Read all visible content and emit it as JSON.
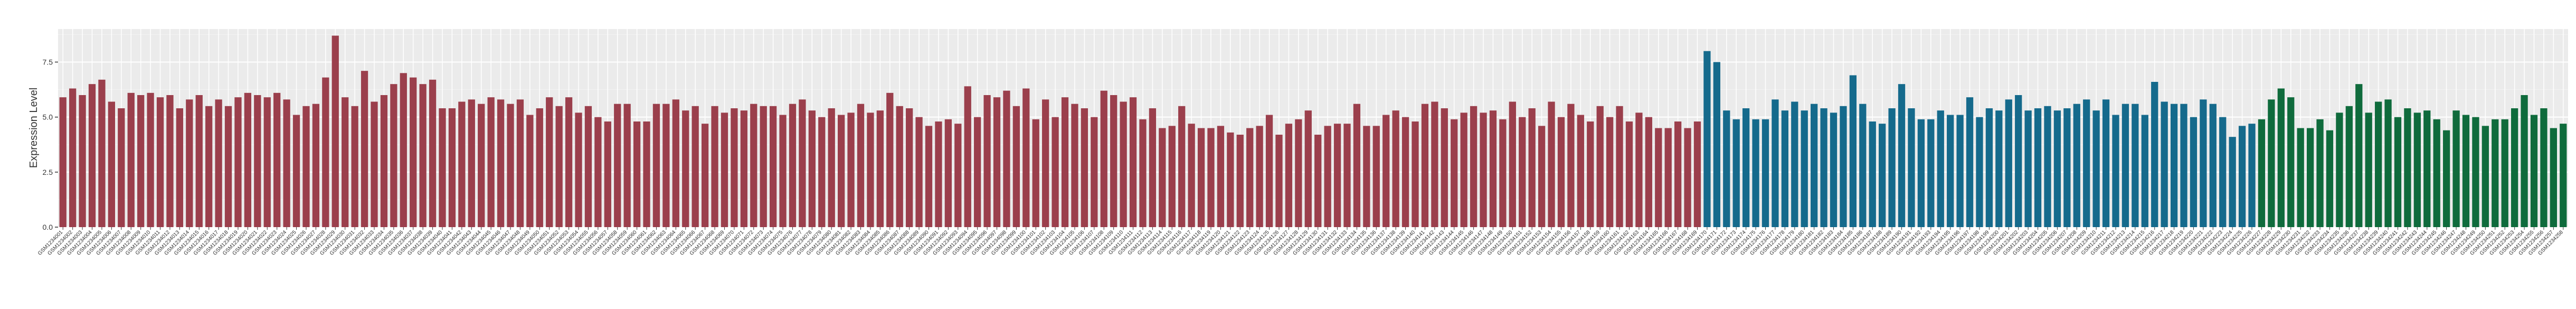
{
  "chart_data": {
    "type": "bar",
    "title": "",
    "xlabel": "",
    "ylabel": "Expression Level",
    "ylim": [
      0,
      9
    ],
    "yticks": [
      0.0,
      2.5,
      5.0,
      7.5
    ],
    "ytick_labels": [
      "0.0",
      "2.5",
      "5.0",
      "7.5"
    ],
    "grid": true,
    "legend": "none",
    "colors": {
      "group1": "#9b3f4c",
      "group2": "#156a8c",
      "group3": "#0f6b3c",
      "panel": "#ebebeb",
      "grid": "#ffffff"
    },
    "categories": [
      "GSM1234001",
      "GSM1234002",
      "GSM1234003",
      "GSM1234004",
      "GSM1234005",
      "GSM1234006",
      "GSM1234007",
      "GSM1234008",
      "GSM1234009",
      "GSM1234010",
      "GSM1234011",
      "GSM1234012",
      "GSM1234013",
      "GSM1234014",
      "GSM1234015",
      "GSM1234016",
      "GSM1234017",
      "GSM1234018",
      "GSM1234019",
      "GSM1234020",
      "GSM1234021",
      "GSM1234022",
      "GSM1234023",
      "GSM1234024",
      "GSM1234025",
      "GSM1234026",
      "GSM1234027",
      "GSM1234028",
      "GSM1234029",
      "GSM1234030",
      "GSM1234031",
      "GSM1234032",
      "GSM1234033",
      "GSM1234034",
      "GSM1234035",
      "GSM1234036",
      "GSM1234037",
      "GSM1234038",
      "GSM1234039",
      "GSM1234040",
      "GSM1234041",
      "GSM1234042",
      "GSM1234043",
      "GSM1234044",
      "GSM1234045",
      "GSM1234046",
      "GSM1234047",
      "GSM1234048",
      "GSM1234049",
      "GSM1234050",
      "GSM1234051",
      "GSM1234052",
      "GSM1234053",
      "GSM1234054",
      "GSM1234055",
      "GSM1234056",
      "GSM1234057",
      "GSM1234058",
      "GSM1234059",
      "GSM1234060",
      "GSM1234061",
      "GSM1234062",
      "GSM1234063",
      "GSM1234064",
      "GSM1234065",
      "GSM1234066",
      "GSM1234067",
      "GSM1234068",
      "GSM1234069",
      "GSM1234070",
      "GSM1234071",
      "GSM1234072",
      "GSM1234073",
      "GSM1234074",
      "GSM1234075",
      "GSM1234076",
      "GSM1234077",
      "GSM1234078",
      "GSM1234079",
      "GSM1234080",
      "GSM1234081",
      "GSM1234082",
      "GSM1234083",
      "GSM1234084",
      "GSM1234085",
      "GSM1234086",
      "GSM1234087",
      "GSM1234088",
      "GSM1234089",
      "GSM1234090",
      "GSM1234091",
      "GSM1234092",
      "GSM1234093",
      "GSM1234094",
      "GSM1234095",
      "GSM1234096",
      "GSM1234097",
      "GSM1234098",
      "GSM1234099",
      "GSM1234100",
      "GSM1234101",
      "GSM1234102",
      "GSM1234103",
      "GSM1234104",
      "GSM1234105",
      "GSM1234106",
      "GSM1234107",
      "GSM1234108",
      "GSM1234109",
      "GSM1234110",
      "GSM1234111",
      "GSM1234112",
      "GSM1234113",
      "GSM1234114",
      "GSM1234115",
      "GSM1234116",
      "GSM1234117",
      "GSM1234118",
      "GSM1234119",
      "GSM1234120",
      "GSM1234121",
      "GSM1234122",
      "GSM1234123",
      "GSM1234124",
      "GSM1234125",
      "GSM1234126",
      "GSM1234127",
      "GSM1234128",
      "GSM1234129",
      "GSM1234130",
      "GSM1234131",
      "GSM1234132",
      "GSM1234133",
      "GSM1234134",
      "GSM1234135",
      "GSM1234136",
      "GSM1234137",
      "GSM1234138",
      "GSM1234139",
      "GSM1234140",
      "GSM1234141",
      "GSM1234142",
      "GSM1234143",
      "GSM1234144",
      "GSM1234145",
      "GSM1234146",
      "GSM1234147",
      "GSM1234148",
      "GSM1234149",
      "GSM1234150",
      "GSM1234151",
      "GSM1234152",
      "GSM1234153",
      "GSM1234154",
      "GSM1234155",
      "GSM1234156",
      "GSM1234157",
      "GSM1234158",
      "GSM1234159",
      "GSM1234160",
      "GSM1234161",
      "GSM1234162",
      "GSM1234163",
      "GSM1234164",
      "GSM1234165",
      "GSM1234166",
      "GSM1234167",
      "GSM1234168",
      "GSM1234169",
      "GSM1234170",
      "GSM1234171",
      "GSM1234172",
      "GSM1234173",
      "GSM1234174",
      "GSM1234175",
      "GSM1234176",
      "GSM1234177",
      "GSM1234178",
      "GSM1234179",
      "GSM1234180",
      "GSM1234181",
      "GSM1234182",
      "GSM1234183",
      "GSM1234184",
      "GSM1234185",
      "GSM1234186",
      "GSM1234187",
      "GSM1234188",
      "GSM1234189",
      "GSM1234190",
      "GSM1234191",
      "GSM1234192",
      "GSM1234193",
      "GSM1234194",
      "GSM1234195",
      "GSM1234196",
      "GSM1234197",
      "GSM1234198",
      "GSM1234199",
      "GSM1234200",
      "GSM1234201",
      "GSM1234202",
      "GSM1234203",
      "GSM1234204",
      "GSM1234205",
      "GSM1234206",
      "GSM1234207",
      "GSM1234208",
      "GSM1234209",
      "GSM1234210",
      "GSM1234211",
      "GSM1234212",
      "GSM1234213",
      "GSM1234214",
      "GSM1234215",
      "GSM1234216",
      "GSM1234217",
      "GSM1234218",
      "GSM1234219",
      "GSM1234220",
      "GSM1234221",
      "GSM1234222",
      "GSM1234223",
      "GSM1234224",
      "GSM1234225",
      "GSM1234226",
      "GSM1234227",
      "GSM1234228",
      "GSM1234229",
      "GSM1234230",
      "GSM1234231",
      "GSM1234232",
      "GSM1234233",
      "GSM1234234",
      "GSM1234235",
      "GSM1234236",
      "GSM1234237",
      "GSM1234238",
      "GSM1234239",
      "GSM1234240",
      "GSM1234241",
      "GSM1234242",
      "GSM1234243",
      "GSM1234244",
      "GSM1234245",
      "GSM1234246",
      "GSM1234247",
      "GSM1234248",
      "GSM1234249",
      "GSM1234250",
      "GSM1234251",
      "GSM1234252",
      "GSM1234253",
      "GSM1234254",
      "GSM1234255",
      "GSM1234256",
      "GSM1234257",
      "GSM1234258"
    ],
    "values": [
      5.9,
      6.3,
      6.0,
      6.5,
      6.7,
      5.7,
      5.4,
      6.1,
      6.0,
      6.1,
      5.9,
      6.0,
      5.4,
      5.8,
      6.0,
      5.5,
      5.8,
      5.5,
      5.9,
      6.1,
      6.0,
      5.9,
      6.1,
      5.8,
      5.1,
      5.5,
      5.6,
      6.8,
      8.7,
      5.9,
      5.5,
      7.1,
      5.7,
      6.0,
      6.5,
      7.0,
      6.8,
      6.5,
      6.7,
      5.4,
      5.4,
      5.7,
      5.8,
      5.6,
      5.9,
      5.8,
      5.6,
      5.8,
      5.1,
      5.4,
      5.9,
      5.5,
      5.9,
      5.2,
      5.5,
      5.0,
      4.8,
      5.6,
      5.6,
      4.8,
      4.8,
      5.6,
      5.6,
      5.8,
      5.3,
      5.5,
      4.7,
      5.5,
      5.2,
      5.4,
      5.3,
      5.6,
      5.5,
      5.5,
      5.1,
      5.6,
      5.8,
      5.3,
      5.0,
      5.4,
      5.1,
      5.2,
      5.6,
      5.2,
      5.3,
      6.1,
      5.5,
      5.4,
      5.0,
      4.6,
      4.8,
      4.9,
      4.7,
      6.4,
      5.0,
      6.0,
      5.9,
      6.2,
      5.5,
      6.3,
      4.9,
      5.8,
      5.0,
      5.9,
      5.6,
      5.4,
      5.0,
      6.2,
      6.0,
      5.7,
      5.9,
      4.9,
      5.4,
      4.5,
      4.6,
      5.5,
      4.7,
      4.5,
      4.5,
      4.6,
      4.3,
      4.2,
      4.5,
      4.6,
      5.1,
      4.2,
      4.7,
      4.9,
      5.3,
      4.2,
      4.6,
      4.7,
      4.7,
      5.6,
      4.6,
      4.6,
      5.1,
      5.3,
      5.0,
      4.8,
      5.6,
      5.7,
      5.4,
      4.9,
      5.2,
      5.5,
      5.2,
      5.3,
      4.9,
      5.7,
      5.0,
      5.4,
      4.6,
      5.7,
      5.0,
      5.6,
      5.1,
      4.8,
      5.5,
      5.0,
      5.5,
      4.8,
      5.2,
      5.0,
      4.5,
      4.5,
      4.8,
      4.5,
      4.8,
      8.0,
      7.5,
      5.3,
      4.9,
      5.4,
      4.9,
      4.9,
      5.8,
      5.3,
      5.7,
      5.3,
      5.6,
      5.4,
      5.2,
      5.5,
      6.9,
      5.6,
      4.8,
      4.7,
      5.4,
      6.5,
      5.4,
      4.9,
      4.9,
      5.3,
      5.1,
      5.1,
      5.9,
      5.0,
      5.4,
      5.3,
      5.8,
      6.0,
      5.3,
      5.4,
      5.5,
      5.3,
      5.4,
      5.6,
      5.8,
      5.3,
      5.8,
      5.1,
      5.6,
      5.6,
      5.1,
      6.6,
      5.7,
      5.6,
      5.6,
      5.0,
      5.8,
      5.6,
      5.0,
      4.1,
      4.6,
      4.7,
      4.9,
      5.8,
      6.3,
      5.9,
      4.5,
      4.5,
      4.9,
      4.4,
      5.2,
      5.5,
      6.5,
      5.2,
      5.7,
      5.8,
      5.0,
      5.4,
      5.2,
      5.3,
      4.9,
      4.4,
      5.3,
      5.1,
      5.0,
      4.6,
      4.9,
      4.9,
      5.4,
      6.0,
      5.1,
      5.4,
      4.5,
      4.7
    ],
    "series": [
      {
        "color_key": "group1",
        "start": 0,
        "end": 168
      },
      {
        "color_key": "group2",
        "start": 169,
        "end": 225
      },
      {
        "color_key": "group3",
        "start": 226,
        "end": 257
      }
    ]
  }
}
